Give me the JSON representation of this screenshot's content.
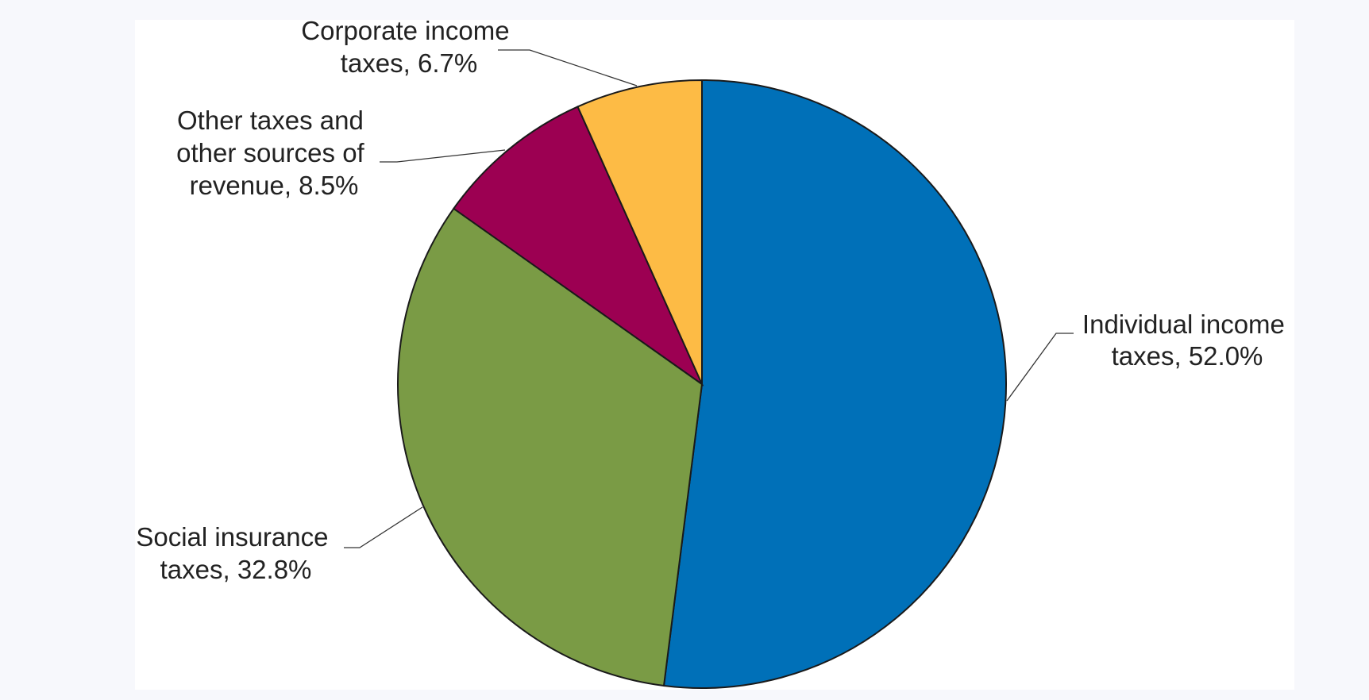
{
  "chart_data": {
    "type": "pie",
    "title": "",
    "slices": [
      {
        "label_line1": "Individual income",
        "label_line2": "taxes, 52.0%",
        "value": 52.0,
        "color": "#0070b8"
      },
      {
        "label_line1": "Social insurance",
        "label_line2": "taxes, 32.8%",
        "value": 32.8,
        "color": "#7a9b45"
      },
      {
        "label_line1": "Other taxes and",
        "label_line2": "other sources of",
        "label_line3": "revenue, 8.5%",
        "value": 8.5,
        "color": "#9c0052"
      },
      {
        "label_line1": "Corporate income",
        "label_line2": "taxes, 6.7%",
        "value": 6.7,
        "color": "#fdbb45"
      }
    ],
    "start_angle_deg": 0,
    "direction": "clockwise",
    "legend": "none"
  }
}
